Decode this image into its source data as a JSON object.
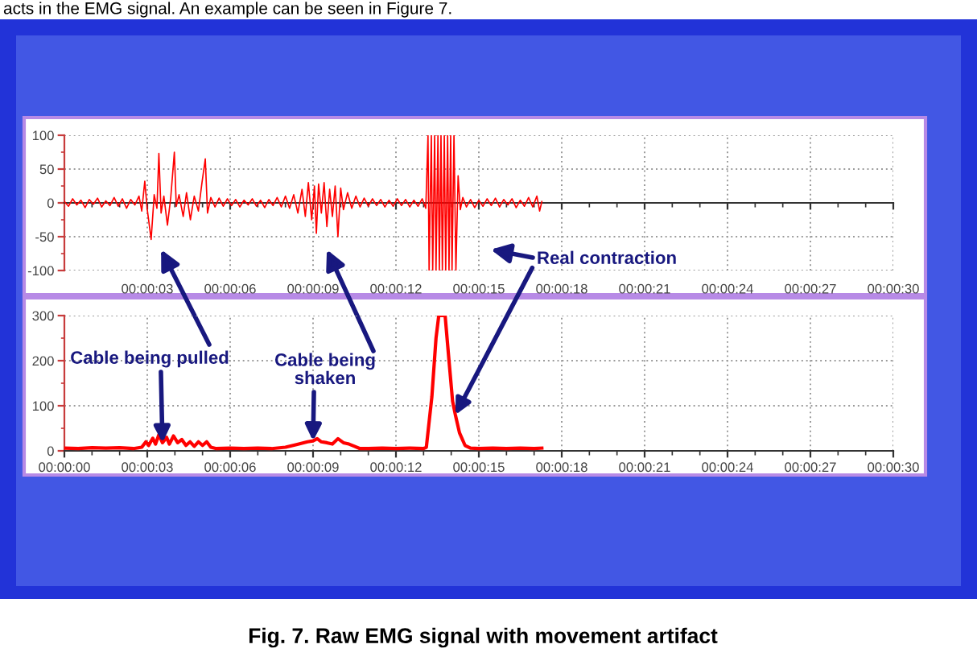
{
  "chart_data": [
    {
      "type": "line",
      "color": "#ff0000",
      "x": [
        0,
        0.15,
        0.3,
        0.45,
        0.6,
        0.75,
        0.9,
        1.05,
        1.2,
        1.35,
        1.5,
        1.65,
        1.8,
        1.95,
        2.1,
        2.25,
        2.4,
        2.55,
        2.7,
        2.8,
        2.91,
        3.0,
        3.14,
        3.25,
        3.35,
        3.42,
        3.5,
        3.6,
        3.73,
        3.85,
        3.98,
        4.05,
        4.15,
        4.3,
        4.42,
        4.56,
        4.7,
        4.85,
        4.98,
        5.1,
        5.18,
        5.3,
        5.45,
        5.6,
        5.75,
        5.9,
        6.05,
        6.2,
        6.35,
        6.5,
        6.65,
        6.8,
        6.95,
        7.1,
        7.25,
        7.4,
        7.55,
        7.7,
        7.85,
        8.0,
        8.15,
        8.3,
        8.45,
        8.6,
        8.72,
        8.83,
        8.95,
        9.05,
        9.12,
        9.2,
        9.3,
        9.4,
        9.5,
        9.6,
        9.7,
        9.8,
        9.9,
        10.0,
        10.1,
        10.25,
        10.4,
        10.55,
        10.7,
        10.85,
        11.0,
        11.15,
        11.3,
        11.45,
        11.6,
        11.75,
        11.9,
        12.05,
        12.2,
        12.35,
        12.5,
        12.65,
        12.8,
        12.95,
        13.08,
        13.16,
        13.2,
        13.28,
        13.33,
        13.4,
        13.45,
        13.52,
        13.57,
        13.63,
        13.68,
        13.75,
        13.8,
        13.87,
        13.92,
        13.98,
        14.03,
        14.1,
        14.17,
        14.25,
        14.33,
        14.42,
        14.55,
        14.7,
        14.85,
        15.0,
        15.15,
        15.3,
        15.45,
        15.6,
        15.75,
        15.9,
        16.05,
        16.2,
        16.35,
        16.5,
        16.65,
        16.8,
        16.95,
        17.1,
        17.2,
        17.28
      ],
      "values": [
        2,
        -5,
        6,
        -3,
        4,
        -7,
        5,
        -2,
        7,
        -6,
        3,
        -4,
        8,
        -5,
        6,
        -8,
        5,
        -3,
        10,
        -12,
        32,
        -10,
        -54,
        12,
        -8,
        73,
        -15,
        10,
        -33,
        8,
        75,
        -5,
        12,
        -20,
        15,
        -25,
        10,
        -12,
        30,
        65,
        -15,
        8,
        -6,
        7,
        -5,
        6,
        -4,
        5,
        -6,
        4,
        -3,
        6,
        -5,
        4,
        -7,
        5,
        -4,
        8,
        -6,
        10,
        -8,
        12,
        -15,
        20,
        -20,
        30,
        -25,
        25,
        -45,
        28,
        -15,
        30,
        -35,
        20,
        -20,
        25,
        -50,
        22,
        -10,
        15,
        -8,
        10,
        -6,
        7,
        -5,
        6,
        -4,
        5,
        -6,
        4,
        -5,
        6,
        -4,
        5,
        -6,
        4,
        -5,
        6,
        -8,
        100,
        -100,
        100,
        -100,
        100,
        -100,
        100,
        -100,
        100,
        -100,
        100,
        -100,
        100,
        -100,
        100,
        -100,
        100,
        -100,
        40,
        -10,
        8,
        -6,
        5,
        -7,
        4,
        -5,
        6,
        -4,
        7,
        -6,
        5,
        -3,
        6,
        -7,
        4,
        -5,
        8,
        -6,
        10,
        -12,
        2
      ],
      "xlim": [
        0,
        30
      ],
      "ylim": [
        -100,
        100
      ],
      "xticks": [
        {
          "value": 3,
          "label": "00:00:03"
        },
        {
          "value": 6,
          "label": "00:00:06"
        },
        {
          "value": 9,
          "label": "00:00:09"
        },
        {
          "value": 12,
          "label": "00:00:12"
        },
        {
          "value": 15,
          "label": "00:00:15"
        },
        {
          "value": 18,
          "label": "00:00:18"
        },
        {
          "value": 21,
          "label": "00:00:21"
        },
        {
          "value": 24,
          "label": "00:00:24"
        },
        {
          "value": 27,
          "label": "00:00:27"
        },
        {
          "value": 30,
          "label": "00:00:30"
        }
      ],
      "yticks": [
        -100,
        -50,
        0,
        50,
        100
      ],
      "grid": true,
      "annotations": [
        "acts in the EMG signal. An example can be seen in Figure 7."
      ]
    },
    {
      "type": "line",
      "color": "#ff0000",
      "x": [
        0,
        0.5,
        1.0,
        1.5,
        2.0,
        2.5,
        2.8,
        2.95,
        3.05,
        3.2,
        3.3,
        3.42,
        3.55,
        3.7,
        3.8,
        3.95,
        4.1,
        4.25,
        4.4,
        4.55,
        4.7,
        4.85,
        5.0,
        5.15,
        5.3,
        5.5,
        6.0,
        6.5,
        7.0,
        7.5,
        8.0,
        8.4,
        8.8,
        9.0,
        9.15,
        9.3,
        9.5,
        9.7,
        9.9,
        10.1,
        10.3,
        10.5,
        10.7,
        11.0,
        11.5,
        12.0,
        12.5,
        13.0,
        13.1,
        13.3,
        13.45,
        13.55,
        13.78,
        13.92,
        14.05,
        14.15,
        14.3,
        14.5,
        14.7,
        15.0,
        15.5,
        16.0,
        16.5,
        17.0,
        17.28
      ],
      "values": [
        6,
        5,
        7,
        6,
        7,
        5,
        8,
        20,
        12,
        28,
        15,
        36,
        18,
        30,
        15,
        33,
        18,
        25,
        12,
        20,
        10,
        20,
        12,
        20,
        8,
        5,
        6,
        5,
        6,
        5,
        8,
        14,
        20,
        22,
        27,
        20,
        18,
        15,
        27,
        18,
        15,
        10,
        5,
        5,
        6,
        5,
        6,
        5,
        8,
        120,
        250,
        300,
        300,
        200,
        110,
        80,
        40,
        12,
        6,
        5,
        6,
        5,
        6,
        5,
        6
      ],
      "xlim": [
        0,
        30
      ],
      "ylim": [
        0,
        300
      ],
      "xticks": [
        {
          "value": 0,
          "label": "00:00:00"
        },
        {
          "value": 3,
          "label": "00:00:03"
        },
        {
          "value": 6,
          "label": "00:00:06"
        },
        {
          "value": 9,
          "label": "00:00:09"
        },
        {
          "value": 12,
          "label": "00:00:12"
        },
        {
          "value": 15,
          "label": "00:00:15"
        },
        {
          "value": 18,
          "label": "00:00:18"
        },
        {
          "value": 21,
          "label": "00:00:21"
        },
        {
          "value": 24,
          "label": "00:00:24"
        },
        {
          "value": 27,
          "label": "00:00:27"
        },
        {
          "value": 30,
          "label": "00:00:30"
        }
      ],
      "yticks": [
        0,
        100,
        200,
        300
      ],
      "grid": true,
      "annotations": [
        {
          "text": "Cable being pulled",
          "x": 3.55,
          "y": 18
        },
        {
          "text": "Cable being\nshaken",
          "x": 9.0,
          "y": 22
        },
        {
          "text": "Real contraction",
          "x": 14.15,
          "y": 80
        },
        "Fig. 7. Raw EMG signal with movement artifact"
      ]
    }
  ]
}
